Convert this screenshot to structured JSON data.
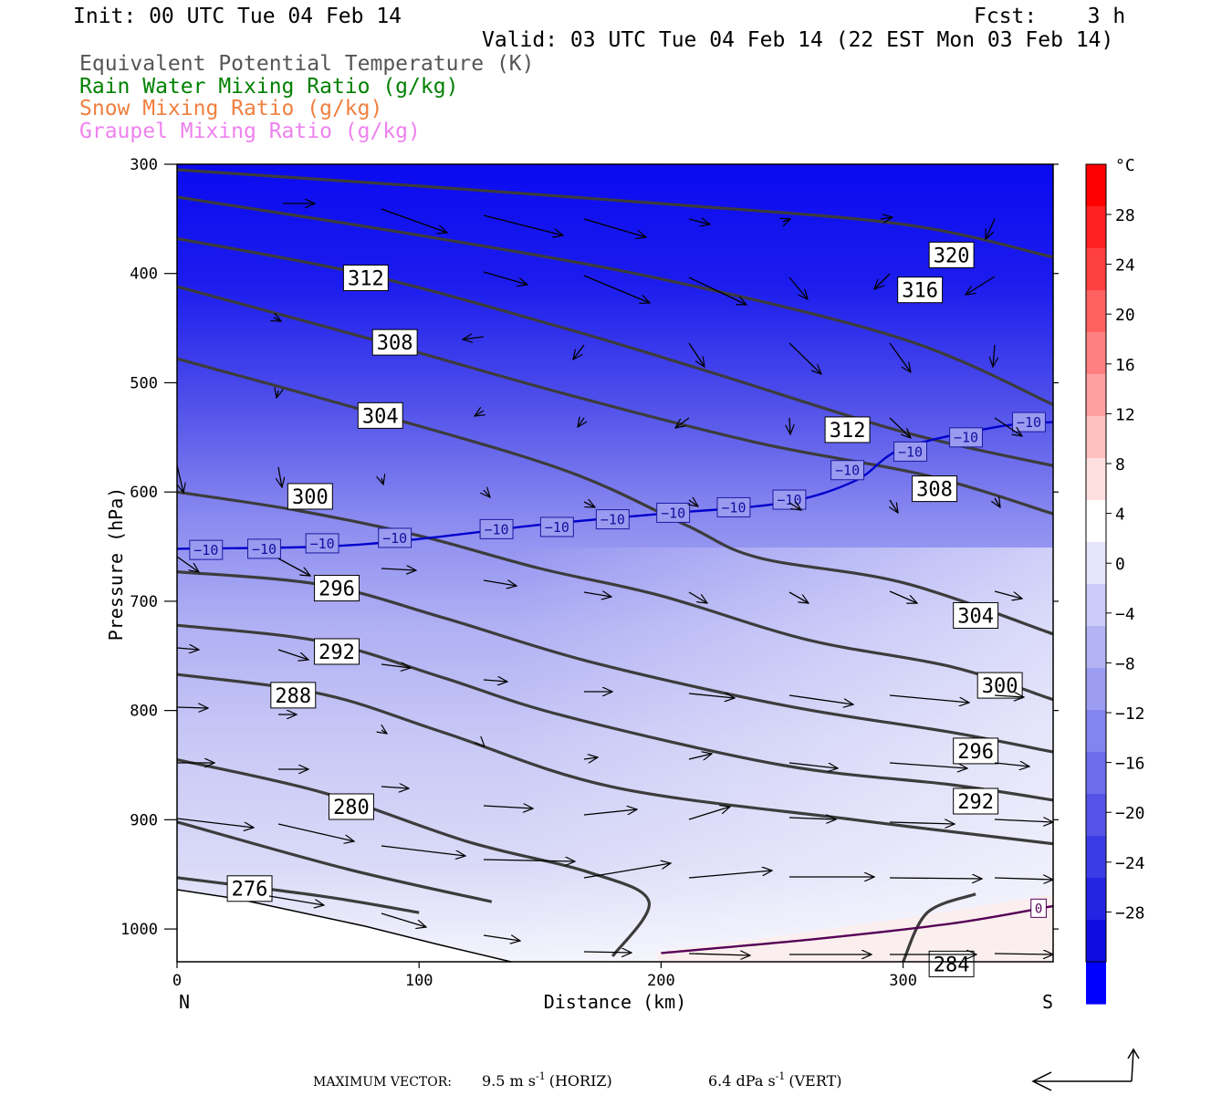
{
  "header": {
    "init": "Init: 00 UTC Tue 04 Feb 14",
    "fcst": "Fcst:    3 h",
    "valid": "Valid: 03 UTC Tue 04 Feb 14 (22 EST Mon 03 Feb 14)"
  },
  "fields": [
    {
      "label": "Equivalent Potential Temperature (K)",
      "color": "#555555"
    },
    {
      "label": "Rain Water Mixing Ratio (g/kg)",
      "color": "#008000"
    },
    {
      "label": "Snow Mixing Ratio (g/kg)",
      "color": "#f08040"
    },
    {
      "label": "Graupel Mixing Ratio (g/kg)",
      "color": "#ee82ee"
    }
  ],
  "footer": {
    "max_vector": "MAXIMUM VECTOR:",
    "horiz_value": "9.5 m s",
    "horiz_exp": "-1",
    "horiz_label": "(HORIZ)",
    "vert_value": "6.4 dPa s",
    "vert_exp": "-1",
    "vert_label": "(VERT)"
  },
  "chart_data": {
    "type": "contour",
    "xlabel": "Distance (km)",
    "ylabel": "Pressure (hPa)",
    "xlim": [
      0,
      362
    ],
    "ylim": [
      1030,
      300
    ],
    "x_ticks": [
      0,
      100,
      200,
      300
    ],
    "y_ticks": [
      300,
      400,
      500,
      600,
      700,
      800,
      900,
      1000
    ],
    "left_end_label": "N",
    "right_end_label": "S",
    "colorbar": {
      "unit": "°C",
      "tick_labels": [
        "28",
        "24",
        "20",
        "16",
        "12",
        "8",
        "4",
        "0",
        "−4",
        "−8",
        "−12",
        "−16",
        "−20",
        "−24",
        "−28"
      ],
      "colors": [
        "#ff0000",
        "#ff2020",
        "#ff4040",
        "#ff6060",
        "#ff8080",
        "#ffa0a0",
        "#ffc0c0",
        "#ffe0e0",
        "#ffffff",
        "#e4e4fb",
        "#ccccf8",
        "#b4b4f5",
        "#9c9cf2",
        "#8484ef",
        "#6c6cec",
        "#5454e9",
        "#3c3ce6",
        "#2424e3",
        "#0c0ce0",
        "#0000ff"
      ]
    },
    "theta_e_contours": [
      {
        "label": "320",
        "points": [
          [
            0,
            305
          ],
          [
            100,
            320
          ],
          [
            200,
            336
          ],
          [
            300,
            355
          ],
          [
            362,
            385
          ]
        ]
      },
      {
        "label": "316",
        "points": [
          [
            0,
            330
          ],
          [
            100,
            365
          ],
          [
            200,
            405
          ],
          [
            300,
            460
          ],
          [
            362,
            520
          ]
        ]
      },
      {
        "label": "312",
        "points": [
          [
            0,
            368
          ],
          [
            80,
            402
          ],
          [
            160,
            450
          ],
          [
            220,
            490
          ],
          [
            300,
            545
          ],
          [
            362,
            576
          ]
        ]
      },
      {
        "label": "308",
        "points": [
          [
            0,
            412
          ],
          [
            80,
            460
          ],
          [
            160,
            510
          ],
          [
            240,
            555
          ],
          [
            310,
            585
          ],
          [
            362,
            620
          ]
        ]
      },
      {
        "label": "304",
        "points": [
          [
            0,
            478
          ],
          [
            80,
            527
          ],
          [
            160,
            580
          ],
          [
            210,
            630
          ],
          [
            240,
            660
          ],
          [
            300,
            683
          ],
          [
            362,
            730
          ]
        ]
      },
      {
        "label": "300",
        "points": [
          [
            0,
            600
          ],
          [
            50,
            617
          ],
          [
            100,
            640
          ],
          [
            150,
            670
          ],
          [
            200,
            695
          ],
          [
            260,
            735
          ],
          [
            320,
            760
          ],
          [
            362,
            790
          ]
        ]
      },
      {
        "label": "296",
        "points": [
          [
            0,
            673
          ],
          [
            60,
            685
          ],
          [
            110,
            715
          ],
          [
            170,
            755
          ],
          [
            250,
            795
          ],
          [
            320,
            820
          ],
          [
            362,
            838
          ]
        ]
      },
      {
        "label": "292",
        "points": [
          [
            0,
            722
          ],
          [
            60,
            737
          ],
          [
            110,
            770
          ],
          [
            160,
            805
          ],
          [
            250,
            850
          ],
          [
            320,
            868
          ],
          [
            362,
            882
          ]
        ]
      },
      {
        "label": "288",
        "points": [
          [
            0,
            767
          ],
          [
            60,
            785
          ],
          [
            110,
            820
          ],
          [
            180,
            870
          ],
          [
            280,
            900
          ],
          [
            362,
            922
          ]
        ]
      },
      {
        "label": "284",
        "points": [
          [
            0,
            845
          ],
          [
            60,
            875
          ],
          [
            120,
            920
          ],
          [
            170,
            948
          ],
          [
            195,
            975
          ],
          [
            180,
            1025
          ]
        ]
      },
      {
        "label": "280",
        "points": [
          [
            0,
            902
          ],
          [
            70,
            945
          ],
          [
            130,
            975
          ]
        ]
      },
      {
        "label": "276",
        "points": [
          [
            0,
            953
          ],
          [
            60,
            970
          ],
          [
            100,
            985
          ]
        ]
      }
    ],
    "theta_e_right_284": {
      "label": "284",
      "points": [
        [
          300,
          1030
        ],
        [
          310,
          985
        ],
        [
          330,
          968
        ]
      ]
    },
    "isotherm_minus10": {
      "label": "−10",
      "color": "#0000cc",
      "points": [
        [
          0,
          652
        ],
        [
          60,
          650
        ],
        [
          100,
          643
        ],
        [
          150,
          630
        ],
        [
          200,
          620
        ],
        [
          250,
          610
        ],
        [
          280,
          590
        ],
        [
          300,
          560
        ],
        [
          340,
          540
        ],
        [
          362,
          536
        ]
      ],
      "label_positions": [
        [
          12,
          653
        ],
        [
          36,
          652
        ],
        [
          60,
          647
        ],
        [
          90,
          642
        ],
        [
          132,
          634
        ],
        [
          157,
          632
        ],
        [
          180,
          625
        ],
        [
          205,
          619
        ],
        [
          230,
          614
        ],
        [
          253,
          607
        ],
        [
          277,
          580
        ],
        [
          303,
          563
        ],
        [
          326,
          550
        ],
        [
          352,
          536
        ]
      ]
    },
    "isotherm_zero": {
      "label": "0",
      "color": "#550055",
      "points": [
        [
          200,
          1022
        ],
        [
          260,
          1010
        ],
        [
          320,
          995
        ],
        [
          362,
          979
        ]
      ]
    }
  }
}
